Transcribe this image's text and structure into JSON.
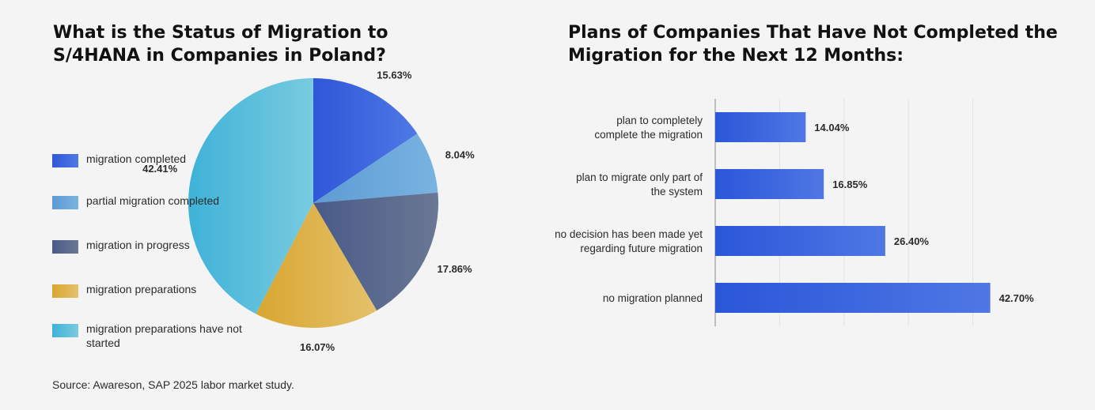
{
  "left_title": "What is the Status of Migration to S/4HANA in Companies in Poland?",
  "right_title": "Plans of Companies That Have Not Completed the Migration for the Next 12 Months:",
  "source": "Source: Awareson, SAP 2025 labor market study.",
  "legend": [
    {
      "label": "migration completed"
    },
    {
      "label": "partial migration completed"
    },
    {
      "label": "migration in progress"
    },
    {
      "label": "migration preparations"
    },
    {
      "label": "migration preparations have not started"
    }
  ],
  "chart_data": [
    {
      "type": "pie",
      "title": "What is the Status of Migration to S/4HANA in Companies in Poland?",
      "categories": [
        "migration completed",
        "partial migration completed",
        "migration in progress",
        "migration preparations",
        "migration preparations have not started"
      ],
      "values": [
        15.63,
        8.04,
        17.86,
        16.07,
        42.41
      ],
      "value_labels": [
        "15.63%",
        "8.04%",
        "17.86%",
        "16.07%",
        "42.41%"
      ],
      "colors": [
        [
          "#2f57d8",
          "#4f78e6"
        ],
        [
          "#5d9bd3",
          "#79b3e1"
        ],
        [
          "#4a5a89",
          "#6a7894"
        ],
        [
          "#d9a630",
          "#e4c16c"
        ],
        [
          "#3fb2d8",
          "#79cbe0"
        ]
      ],
      "legend": "left",
      "start": "top",
      "direction": "clockwise"
    },
    {
      "type": "bar",
      "orientation": "horizontal",
      "title": "Plans of Companies That Have Not Completed the Migration for the Next 12 Months:",
      "categories": [
        [
          "plan to completely",
          "complete the migration"
        ],
        [
          "plan to migrate only part of",
          "the system"
        ],
        [
          "no decision has been made yet",
          "regarding future migration"
        ],
        [
          "no migration planned"
        ]
      ],
      "values": [
        14.04,
        16.85,
        26.4,
        42.7
      ],
      "value_labels": [
        "14.04%",
        "16.85%",
        "26.40%",
        "42.70%"
      ],
      "xlim": [
        0,
        50
      ],
      "grid": true,
      "bar_color": [
        "#2a56d9",
        "#4f77e4"
      ]
    }
  ]
}
